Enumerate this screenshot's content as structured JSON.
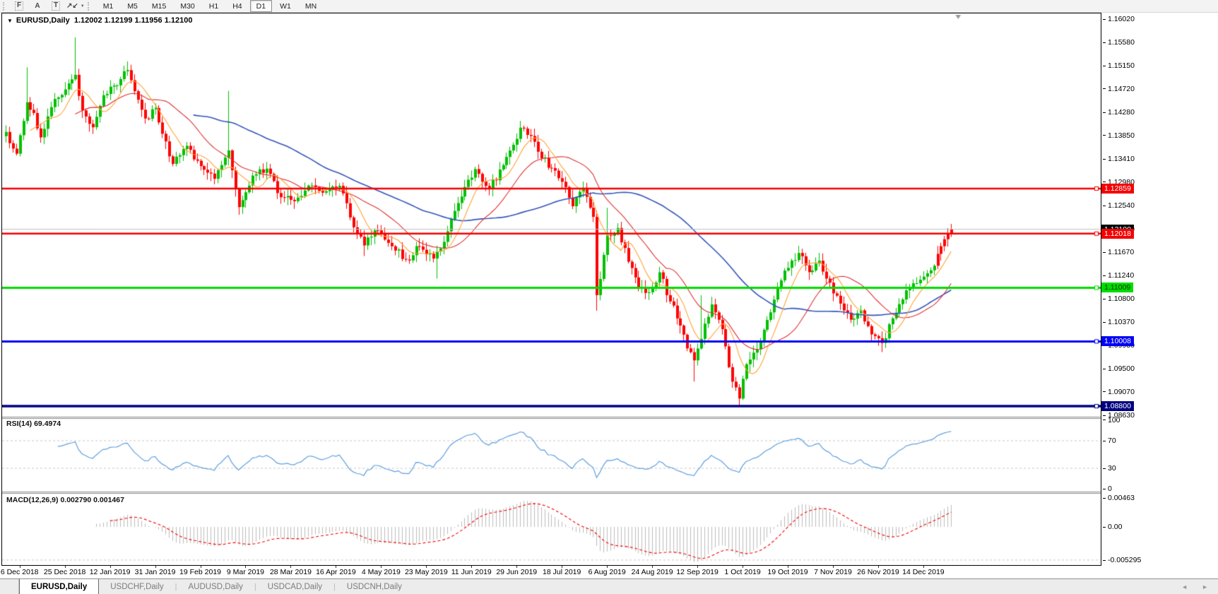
{
  "toolbar": {
    "tools": [
      {
        "name": "template-f-icon",
        "glyph": "F",
        "boxed": true,
        "caret": false
      },
      {
        "name": "label-tool-icon",
        "glyph": "A",
        "boxed": false,
        "caret": false
      },
      {
        "name": "text-tool-icon",
        "glyph": "T",
        "boxed": true,
        "caret": false
      },
      {
        "name": "cursor-tool-icon",
        "glyph": "↗↙",
        "boxed": false,
        "caret": true
      }
    ],
    "timeframes": [
      "M1",
      "M5",
      "M15",
      "M30",
      "H1",
      "H4",
      "D1",
      "W1",
      "MN"
    ],
    "active_timeframe": "D1"
  },
  "chart": {
    "expander_glyph": "▼",
    "symbol": "EURUSD,Daily",
    "open": "1.12002",
    "high": "1.12199",
    "low": "1.11956",
    "close": "1.12100"
  },
  "price_axis": {
    "ticks": [
      "1.16020",
      "1.15580",
      "1.15150",
      "1.14720",
      "1.14280",
      "1.13850",
      "1.13410",
      "1.12980",
      "1.12540",
      "1.12100",
      "1.11670",
      "1.11240",
      "1.10800",
      "1.10370",
      "1.09930",
      "1.09500",
      "1.09070",
      "1.08630"
    ]
  },
  "hlines": [
    {
      "price": 1.12859,
      "label": "1.12859",
      "color": "#F40000",
      "badge_bg": "#F40000",
      "badge_fg": "#FFFFFF",
      "width": 2.5
    },
    {
      "price": 1.12018,
      "label": "1.12018",
      "color": "#F40000",
      "badge_bg": "#F40000",
      "badge_fg": "#FFFFFF",
      "width": 2.5
    },
    {
      "price": 1.11009,
      "label": "1.11009",
      "color": "#00DC00",
      "badge_bg": "#00DC00",
      "badge_fg": "#103300",
      "width": 3
    },
    {
      "price": 1.10008,
      "label": "1.10008",
      "color": "#0000F4",
      "badge_bg": "#0000F4",
      "badge_fg": "#FFFFFF",
      "width": 3
    },
    {
      "price": 1.088,
      "label": "1.08800",
      "color": "#000080",
      "badge_bg": "#000080",
      "badge_fg": "#FFFFFF",
      "width": 3.5
    }
  ],
  "current_price": {
    "value": 1.121,
    "label": "1.12100",
    "line_color": "#BFBFBF",
    "badge_bg": "#000000",
    "badge_fg": "#FFFFFF"
  },
  "rsi_panel": {
    "label": "RSI(14) 69.4974",
    "value": 69.4974,
    "axis": [
      {
        "v": 100,
        "t": "100"
      },
      {
        "v": 70,
        "t": "70"
      },
      {
        "v": 30,
        "t": "30"
      },
      {
        "v": 0,
        "t": "0"
      }
    ],
    "levels": [
      70,
      30
    ],
    "line_color": "#5F9FDF",
    "level_color": "#C8C8C8"
  },
  "macd_panel": {
    "label": "MACD(12,26,9) 0.002790 0.001467",
    "macd_value": 0.00279,
    "signal_value": 0.001467,
    "axis": [
      {
        "v": 0.00463,
        "t": "0.00463"
      },
      {
        "v": 0,
        "t": "0.00"
      },
      {
        "v": -0.005295,
        "t": "-0.005295"
      }
    ],
    "bottom_level": -0.005295,
    "hist_color": "#BDBDBD",
    "signal_color": "#F40000",
    "level_color": "#C8C8C8"
  },
  "time_axis": {
    "labels": [
      {
        "text": "6 Dec 2018",
        "bar": 4
      },
      {
        "text": "25 Dec 2018",
        "bar": 17
      },
      {
        "text": "12 Jan 2019",
        "bar": 30
      },
      {
        "text": "31 Jan 2019",
        "bar": 43
      },
      {
        "text": "19 Feb 2019",
        "bar": 56
      },
      {
        "text": "9 Mar 2019",
        "bar": 69
      },
      {
        "text": "28 Mar 2019",
        "bar": 82
      },
      {
        "text": "16 Apr 2019",
        "bar": 95
      },
      {
        "text": "4 May 2019",
        "bar": 108
      },
      {
        "text": "23 May 2019",
        "bar": 121
      },
      {
        "text": "11 Jun 2019",
        "bar": 134
      },
      {
        "text": "29 Jun 2019",
        "bar": 147
      },
      {
        "text": "18 Jul 2019",
        "bar": 160
      },
      {
        "text": "6 Aug 2019",
        "bar": 173
      },
      {
        "text": "24 Aug 2019",
        "bar": 186
      },
      {
        "text": "12 Sep 2019",
        "bar": 199
      },
      {
        "text": "1 Oct 2019",
        "bar": 212
      },
      {
        "text": "19 Oct 2019",
        "bar": 225
      },
      {
        "text": "7 Nov 2019",
        "bar": 238
      },
      {
        "text": "26 Nov 2019",
        "bar": 251
      },
      {
        "text": "14 Dec 2019",
        "bar": 264
      }
    ]
  },
  "tabs": {
    "items": [
      {
        "label": "EURUSD,Daily",
        "active": true
      },
      {
        "label": "USDCHF,Daily",
        "active": false
      },
      {
        "label": "AUDUSD,Daily",
        "active": false
      },
      {
        "label": "USDCAD,Daily",
        "active": false
      },
      {
        "label": "USDCNH,Daily",
        "active": false
      }
    ],
    "separator_glyph": "|",
    "scroll_left_glyph": "◄",
    "scroll_right_glyph": "►"
  },
  "chart_data": {
    "type": "candlestick",
    "symbol": "EURUSD",
    "timeframe": "Daily",
    "bars_total": 273,
    "last_bar": {
      "open": 1.12002,
      "high": 1.12199,
      "low": 1.11956,
      "close": 1.121
    },
    "close_anchors": [
      [
        0,
        1.139
      ],
      [
        3,
        1.1352
      ],
      [
        6,
        1.1448
      ],
      [
        8,
        1.1425
      ],
      [
        10,
        1.1382
      ],
      [
        12,
        1.142
      ],
      [
        14,
        1.1455
      ],
      [
        17,
        1.1472
      ],
      [
        20,
        1.1498
      ],
      [
        22,
        1.1432
      ],
      [
        25,
        1.1402
      ],
      [
        28,
        1.1458
      ],
      [
        31,
        1.1478
      ],
      [
        35,
        1.1506
      ],
      [
        38,
        1.1452
      ],
      [
        40,
        1.1415
      ],
      [
        43,
        1.1437
      ],
      [
        46,
        1.1372
      ],
      [
        48,
        1.133
      ],
      [
        52,
        1.1366
      ],
      [
        55,
        1.1336
      ],
      [
        57,
        1.132
      ],
      [
        60,
        1.1306
      ],
      [
        64,
        1.1356
      ],
      [
        67,
        1.1252
      ],
      [
        71,
        1.131
      ],
      [
        75,
        1.1322
      ],
      [
        79,
        1.127
      ],
      [
        83,
        1.1262
      ],
      [
        87,
        1.1292
      ],
      [
        91,
        1.1278
      ],
      [
        96,
        1.1292
      ],
      [
        100,
        1.1212
      ],
      [
        103,
        1.118
      ],
      [
        106,
        1.1206
      ],
      [
        110,
        1.1186
      ],
      [
        115,
        1.1152
      ],
      [
        119,
        1.1178
      ],
      [
        123,
        1.1156
      ],
      [
        127,
        1.1206
      ],
      [
        132,
        1.129
      ],
      [
        135,
        1.1322
      ],
      [
        139,
        1.1286
      ],
      [
        143,
        1.133
      ],
      [
        148,
        1.1398
      ],
      [
        152,
        1.1372
      ],
      [
        156,
        1.1326
      ],
      [
        160,
        1.13
      ],
      [
        163,
        1.1252
      ],
      [
        166,
        1.1286
      ],
      [
        169,
        1.1232
      ],
      [
        170,
        1.1086
      ],
      [
        173,
        1.12
      ],
      [
        176,
        1.1212
      ],
      [
        179,
        1.115
      ],
      [
        182,
        1.1102
      ],
      [
        185,
        1.1092
      ],
      [
        188,
        1.113
      ],
      [
        191,
        1.1076
      ],
      [
        194,
        1.103
      ],
      [
        196,
        1.0986
      ],
      [
        198,
        1.0966
      ],
      [
        200,
        1.1006
      ],
      [
        203,
        1.107
      ],
      [
        205,
        1.1042
      ],
      [
        207,
        1.0992
      ],
      [
        209,
        1.0926
      ],
      [
        211,
        1.0893
      ],
      [
        213,
        1.096
      ],
      [
        216,
        1.0988
      ],
      [
        219,
        1.104
      ],
      [
        222,
        1.11
      ],
      [
        225,
        1.114
      ],
      [
        228,
        1.1164
      ],
      [
        231,
        1.113
      ],
      [
        234,
        1.115
      ],
      [
        237,
        1.111
      ],
      [
        240,
        1.107
      ],
      [
        243,
        1.104
      ],
      [
        246,
        1.1058
      ],
      [
        249,
        1.1012
      ],
      [
        252,
        1.0998
      ],
      [
        255,
        1.1042
      ],
      [
        258,
        1.108
      ],
      [
        261,
        1.1108
      ],
      [
        264,
        1.1122
      ],
      [
        267,
        1.1142
      ],
      [
        269,
        1.1178
      ],
      [
        271,
        1.1202
      ],
      [
        272,
        1.121
      ]
    ],
    "wick_extremes": [
      [
        6,
        "h",
        1.1512
      ],
      [
        20,
        "h",
        1.1568
      ],
      [
        35,
        "h",
        1.1523
      ],
      [
        64,
        "h",
        1.1468
      ],
      [
        103,
        "l",
        1.116
      ],
      [
        124,
        "l",
        1.1118
      ],
      [
        148,
        "h",
        1.1412
      ],
      [
        170,
        "l",
        1.1058
      ],
      [
        173,
        "h",
        1.125
      ],
      [
        198,
        "l",
        1.0926
      ],
      [
        200,
        "h",
        1.1087
      ],
      [
        211,
        "l",
        1.0879
      ],
      [
        228,
        "h",
        1.1179
      ],
      [
        252,
        "l",
        1.0981
      ]
    ],
    "bull_color": "#00C000",
    "bear_color": "#FF0000",
    "ma_periods": [
      8,
      21,
      55
    ],
    "ma_fast_color": "#FFA335",
    "ma_mid_color": "#E03030",
    "ma_slow_color": "#3355BB",
    "red_tail_from": 268,
    "seed": 20191227
  }
}
